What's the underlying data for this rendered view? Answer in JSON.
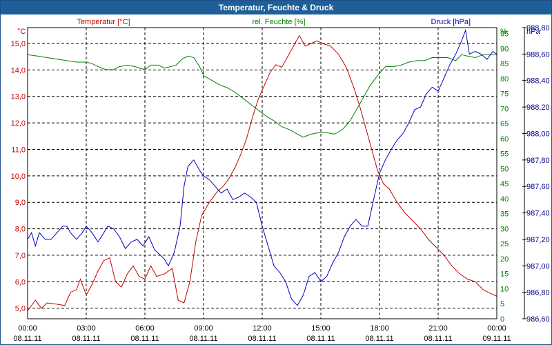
{
  "chart_data": {
    "type": "line",
    "title": "Temperatur, Feuchte & Druck",
    "x": [
      "00:00",
      "03:00",
      "06:00",
      "09:00",
      "12:00",
      "15:00",
      "18:00",
      "21:00",
      "00:00"
    ],
    "x_dates": [
      "08.11.11",
      "08.11.11",
      "08.11.11",
      "08.11.11",
      "08.11.11",
      "08.11.11",
      "08.11.11",
      "08.11.11",
      "09.11.11"
    ],
    "xlim_hours": [
      0,
      24
    ],
    "axes": {
      "temperature": {
        "unit": "°C",
        "label": "Temperatur [°C]",
        "ylim": [
          4.6,
          15.6
        ],
        "ticks": [
          "5,0",
          "6,0",
          "7,0",
          "8,0",
          "9,0",
          "10,0",
          "11,0",
          "12,0",
          "13,0",
          "14,0",
          "15,0"
        ],
        "tick_values": [
          5,
          6,
          7,
          8,
          9,
          10,
          11,
          12,
          13,
          14,
          15
        ]
      },
      "humidity": {
        "unit": "%",
        "label": "rel. Feuchte [%]",
        "ylim": [
          0,
          97
        ],
        "ticks": [
          "0",
          "5",
          "10",
          "15",
          "20",
          "25",
          "30",
          "35",
          "40",
          "45",
          "50",
          "55",
          "60",
          "65",
          "70",
          "75",
          "80",
          "85",
          "90",
          "95"
        ],
        "tick_values": [
          0,
          5,
          10,
          15,
          20,
          25,
          30,
          35,
          40,
          45,
          50,
          55,
          60,
          65,
          70,
          75,
          80,
          85,
          90,
          95
        ]
      },
      "pressure": {
        "unit": "hPa",
        "label": "Druck [hPa]",
        "ylim": [
          986.6,
          988.8
        ],
        "ticks": [
          "986,60",
          "986,80",
          "987,00",
          "987,20",
          "987,40",
          "987,60",
          "987,80",
          "988,00",
          "988,20",
          "988,40",
          "988,60",
          "988,80"
        ],
        "tick_values": [
          986.6,
          986.8,
          987.0,
          987.2,
          987.4,
          987.6,
          987.8,
          988.0,
          988.2,
          988.4,
          988.6,
          988.8
        ]
      }
    },
    "series": [
      {
        "name": "Temperatur [°C]",
        "axis": "temperature",
        "color": "#c00000",
        "points": [
          [
            0,
            4.9
          ],
          [
            0.4,
            5.3
          ],
          [
            0.7,
            5.0
          ],
          [
            1.0,
            5.2
          ],
          [
            1.5,
            5.15
          ],
          [
            1.9,
            5.1
          ],
          [
            2.2,
            5.6
          ],
          [
            2.5,
            5.7
          ],
          [
            2.7,
            6.1
          ],
          [
            3.0,
            5.5
          ],
          [
            3.3,
            5.9
          ],
          [
            3.6,
            6.4
          ],
          [
            3.9,
            6.8
          ],
          [
            4.2,
            6.9
          ],
          [
            4.5,
            6.0
          ],
          [
            4.8,
            5.8
          ],
          [
            5.1,
            6.3
          ],
          [
            5.4,
            6.6
          ],
          [
            5.7,
            6.2
          ],
          [
            6.0,
            6.1
          ],
          [
            6.3,
            6.6
          ],
          [
            6.6,
            6.2
          ],
          [
            7.0,
            6.3
          ],
          [
            7.4,
            6.5
          ],
          [
            7.7,
            5.3
          ],
          [
            8.0,
            5.2
          ],
          [
            8.3,
            6.0
          ],
          [
            8.6,
            7.5
          ],
          [
            8.9,
            8.5
          ],
          [
            9.3,
            9.0
          ],
          [
            9.7,
            9.4
          ],
          [
            10.0,
            9.6
          ],
          [
            10.3,
            9.9
          ],
          [
            10.6,
            10.3
          ],
          [
            10.9,
            10.8
          ],
          [
            11.2,
            11.4
          ],
          [
            11.5,
            12.2
          ],
          [
            11.8,
            12.9
          ],
          [
            12.1,
            13.4
          ],
          [
            12.4,
            13.9
          ],
          [
            12.7,
            14.2
          ],
          [
            13.0,
            14.1
          ],
          [
            13.3,
            14.5
          ],
          [
            13.6,
            14.9
          ],
          [
            13.9,
            15.3
          ],
          [
            14.2,
            14.9
          ],
          [
            14.5,
            15.0
          ],
          [
            14.8,
            15.1
          ],
          [
            15.1,
            15.0
          ],
          [
            15.5,
            14.9
          ],
          [
            15.9,
            14.6
          ],
          [
            16.3,
            14.1
          ],
          [
            16.7,
            13.3
          ],
          [
            17.0,
            12.6
          ],
          [
            17.3,
            11.8
          ],
          [
            17.6,
            11.0
          ],
          [
            17.9,
            10.2
          ],
          [
            18.2,
            9.7
          ],
          [
            18.5,
            9.5
          ],
          [
            18.9,
            9.0
          ],
          [
            19.3,
            8.6
          ],
          [
            19.7,
            8.3
          ],
          [
            20.1,
            8.0
          ],
          [
            20.5,
            7.6
          ],
          [
            20.9,
            7.3
          ],
          [
            21.3,
            7.0
          ],
          [
            21.7,
            6.6
          ],
          [
            22.1,
            6.3
          ],
          [
            22.5,
            6.1
          ],
          [
            22.9,
            6.0
          ],
          [
            23.3,
            5.7
          ],
          [
            23.7,
            5.55
          ],
          [
            24.0,
            5.45
          ]
        ]
      },
      {
        "name": "rel. Feuchte [%]",
        "axis": "humidity",
        "color": "#008000",
        "points": [
          [
            0,
            88
          ],
          [
            0.5,
            87.5
          ],
          [
            1.0,
            87
          ],
          [
            1.5,
            86.5
          ],
          [
            2.0,
            86
          ],
          [
            2.5,
            85.5
          ],
          [
            3.0,
            85.5
          ],
          [
            3.3,
            85
          ],
          [
            3.6,
            84
          ],
          [
            4.0,
            83
          ],
          [
            4.4,
            83
          ],
          [
            4.7,
            84
          ],
          [
            5.1,
            84.5
          ],
          [
            5.5,
            84
          ],
          [
            6.0,
            83
          ],
          [
            6.3,
            84.5
          ],
          [
            6.7,
            84.5
          ],
          [
            7.0,
            83.5
          ],
          [
            7.3,
            84
          ],
          [
            7.6,
            84.5
          ],
          [
            7.9,
            86.5
          ],
          [
            8.2,
            87.5
          ],
          [
            8.5,
            87
          ],
          [
            8.8,
            84
          ],
          [
            9.0,
            81
          ],
          [
            9.4,
            79.5
          ],
          [
            9.8,
            78
          ],
          [
            10.2,
            77
          ],
          [
            10.6,
            75.5
          ],
          [
            11.0,
            73.5
          ],
          [
            11.4,
            71.5
          ],
          [
            11.8,
            69.5
          ],
          [
            12.2,
            67.5
          ],
          [
            12.6,
            66
          ],
          [
            13.0,
            64
          ],
          [
            13.4,
            63
          ],
          [
            13.8,
            61.5
          ],
          [
            14.1,
            60.5
          ],
          [
            14.5,
            61.5
          ],
          [
            14.9,
            62
          ],
          [
            15.3,
            62
          ],
          [
            15.7,
            61.5
          ],
          [
            16.1,
            63
          ],
          [
            16.5,
            66
          ],
          [
            16.9,
            70.5
          ],
          [
            17.2,
            74
          ],
          [
            17.5,
            77.5
          ],
          [
            17.9,
            81
          ],
          [
            18.3,
            84
          ],
          [
            18.7,
            84
          ],
          [
            19.1,
            84.5
          ],
          [
            19.5,
            85.5
          ],
          [
            19.9,
            86
          ],
          [
            20.3,
            86
          ],
          [
            20.7,
            87
          ],
          [
            21.1,
            87
          ],
          [
            21.5,
            87
          ],
          [
            21.9,
            86
          ],
          [
            22.2,
            88
          ],
          [
            22.5,
            87.5
          ],
          [
            22.9,
            87
          ],
          [
            23.3,
            88
          ],
          [
            23.7,
            88
          ],
          [
            24.0,
            88
          ]
        ]
      },
      {
        "name": "Druck [hPa]",
        "axis": "pressure",
        "color": "#0000c0",
        "points": [
          [
            0,
            987.2
          ],
          [
            0.2,
            987.25
          ],
          [
            0.4,
            987.15
          ],
          [
            0.6,
            987.25
          ],
          [
            0.9,
            987.2
          ],
          [
            1.2,
            987.2
          ],
          [
            1.5,
            987.25
          ],
          [
            1.8,
            987.3
          ],
          [
            2.0,
            987.3
          ],
          [
            2.2,
            987.25
          ],
          [
            2.5,
            987.2
          ],
          [
            2.8,
            987.25
          ],
          [
            3.0,
            987.3
          ],
          [
            3.3,
            987.25
          ],
          [
            3.6,
            987.18
          ],
          [
            3.9,
            987.25
          ],
          [
            4.1,
            987.3
          ],
          [
            4.4,
            987.28
          ],
          [
            4.7,
            987.22
          ],
          [
            5.0,
            987.13
          ],
          [
            5.3,
            987.18
          ],
          [
            5.6,
            987.2
          ],
          [
            5.9,
            987.15
          ],
          [
            6.2,
            987.22
          ],
          [
            6.5,
            987.12
          ],
          [
            6.8,
            987.08
          ],
          [
            7.0,
            987.05
          ],
          [
            7.2,
            987.0
          ],
          [
            7.5,
            987.1
          ],
          [
            7.8,
            987.3
          ],
          [
            8.0,
            987.6
          ],
          [
            8.2,
            987.75
          ],
          [
            8.5,
            987.8
          ],
          [
            8.8,
            987.72
          ],
          [
            9.0,
            987.68
          ],
          [
            9.3,
            987.65
          ],
          [
            9.6,
            987.6
          ],
          [
            9.9,
            987.55
          ],
          [
            10.2,
            987.58
          ],
          [
            10.5,
            987.5
          ],
          [
            10.8,
            987.52
          ],
          [
            11.1,
            987.55
          ],
          [
            11.4,
            987.52
          ],
          [
            11.7,
            987.48
          ],
          [
            12.0,
            987.3
          ],
          [
            12.3,
            987.15
          ],
          [
            12.6,
            987.0
          ],
          [
            12.9,
            986.95
          ],
          [
            13.2,
            986.88
          ],
          [
            13.5,
            986.75
          ],
          [
            13.8,
            986.7
          ],
          [
            14.1,
            986.78
          ],
          [
            14.4,
            986.92
          ],
          [
            14.7,
            986.95
          ],
          [
            15.0,
            986.88
          ],
          [
            15.3,
            986.92
          ],
          [
            15.6,
            987.02
          ],
          [
            15.9,
            987.1
          ],
          [
            16.2,
            987.22
          ],
          [
            16.5,
            987.3
          ],
          [
            16.8,
            987.35
          ],
          [
            17.1,
            987.3
          ],
          [
            17.4,
            987.3
          ],
          [
            17.7,
            987.5
          ],
          [
            18.0,
            987.7
          ],
          [
            18.3,
            987.8
          ],
          [
            18.6,
            987.88
          ],
          [
            18.9,
            987.95
          ],
          [
            19.2,
            988.0
          ],
          [
            19.5,
            988.08
          ],
          [
            19.8,
            988.18
          ],
          [
            20.1,
            988.2
          ],
          [
            20.4,
            988.3
          ],
          [
            20.7,
            988.35
          ],
          [
            21.0,
            988.32
          ],
          [
            21.3,
            988.42
          ],
          [
            21.6,
            988.52
          ],
          [
            21.9,
            988.6
          ],
          [
            22.2,
            988.7
          ],
          [
            22.4,
            988.78
          ],
          [
            22.6,
            988.6
          ],
          [
            22.9,
            988.62
          ],
          [
            23.2,
            988.6
          ],
          [
            23.5,
            988.56
          ],
          [
            23.8,
            988.62
          ],
          [
            24.0,
            988.6
          ]
        ]
      }
    ]
  }
}
